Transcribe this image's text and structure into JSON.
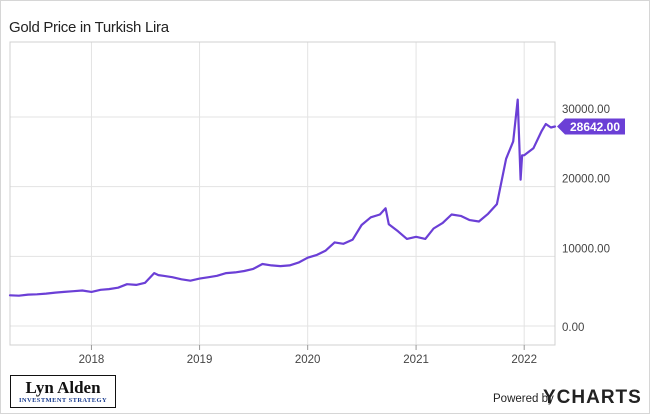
{
  "chart_data": {
    "type": "line",
    "title": "Gold Price in Turkish Lira",
    "series": [
      {
        "color": "#6b3fd6",
        "x": [
          "2017-04-01",
          "2017-05-01",
          "2017-06-01",
          "2017-07-01",
          "2017-08-01",
          "2017-09-01",
          "2017-10-01",
          "2017-11-01",
          "2017-12-01",
          "2018-01-01",
          "2018-02-01",
          "2018-03-01",
          "2018-04-01",
          "2018-05-01",
          "2018-06-01",
          "2018-07-01",
          "2018-08-01",
          "2018-08-15",
          "2018-09-01",
          "2018-10-01",
          "2018-11-01",
          "2018-12-01",
          "2019-01-01",
          "2019-02-01",
          "2019-03-01",
          "2019-04-01",
          "2019-05-01",
          "2019-06-01",
          "2019-07-01",
          "2019-08-01",
          "2019-09-01",
          "2019-10-01",
          "2019-11-01",
          "2019-12-01",
          "2020-01-01",
          "2020-02-01",
          "2020-03-01",
          "2020-04-01",
          "2020-05-01",
          "2020-06-01",
          "2020-07-01",
          "2020-08-01",
          "2020-09-01",
          "2020-09-20",
          "2020-10-01",
          "2020-11-01",
          "2020-12-01",
          "2021-01-01",
          "2021-02-01",
          "2021-03-01",
          "2021-04-01",
          "2021-05-01",
          "2021-06-01",
          "2021-07-01",
          "2021-08-01",
          "2021-09-01",
          "2021-10-01",
          "2021-11-01",
          "2021-11-25",
          "2021-12-10",
          "2021-12-20",
          "2021-12-25",
          "2022-01-01",
          "2022-02-01",
          "2022-03-01",
          "2022-03-15",
          "2022-04-01",
          "2022-04-15"
        ],
        "values": [
          4400,
          4350,
          4500,
          4550,
          4650,
          4800,
          4900,
          5000,
          5100,
          4900,
          5200,
          5300,
          5500,
          6000,
          5900,
          6200,
          7600,
          7300,
          7200,
          7000,
          6700,
          6500,
          6800,
          7000,
          7200,
          7600,
          7700,
          7900,
          8200,
          8900,
          8700,
          8600,
          8700,
          9100,
          9800,
          10200,
          10800,
          12000,
          11800,
          12400,
          14500,
          15600,
          16000,
          16900,
          14600,
          13600,
          12500,
          12800,
          12500,
          14000,
          14800,
          16000,
          15800,
          15200,
          15000,
          16100,
          17500,
          24000,
          26500,
          32500,
          21000,
          24500,
          24500,
          25500,
          28000,
          29000,
          28500,
          28642
        ]
      }
    ],
    "x_ticks": [
      "2018",
      "2019",
      "2020",
      "2021",
      "2022"
    ],
    "y_ticks": [
      "0.00",
      "10000.00",
      "20000.00",
      "30000.00"
    ],
    "last_value_label": "28642.00",
    "ylim": [
      0,
      30000
    ],
    "grid": true
  },
  "logo": {
    "name": "Lyn Alden",
    "tagline": "INVESTMENT STRATEGY"
  },
  "footer": {
    "powered_by": "Powered by",
    "brand": "YCHARTS"
  }
}
